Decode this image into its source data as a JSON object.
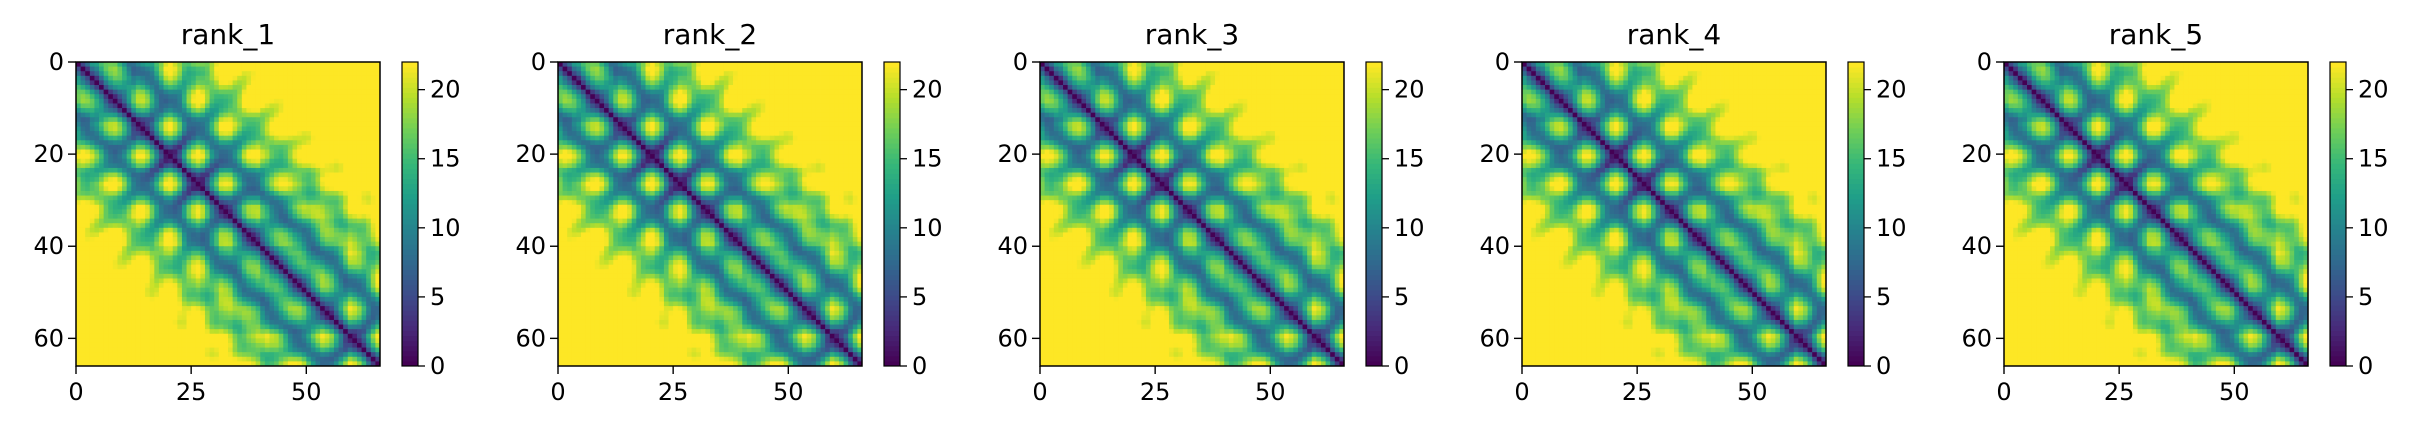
{
  "chart_data": [
    {
      "type": "heatmap",
      "title": "rank_1",
      "xlabel": "",
      "ylabel": "",
      "matrix_size": 66,
      "x_ticks": [
        "0",
        "25",
        "50"
      ],
      "y_ticks": [
        "0",
        "20",
        "40",
        "60"
      ],
      "colorbar": {
        "ticks": [
          "0",
          "5",
          "10",
          "15",
          "20"
        ],
        "range": [
          0,
          22
        ],
        "colormap": "viridis"
      }
    },
    {
      "type": "heatmap",
      "title": "rank_2",
      "xlabel": "",
      "ylabel": "",
      "matrix_size": 66,
      "x_ticks": [
        "0",
        "25",
        "50"
      ],
      "y_ticks": [
        "0",
        "20",
        "40",
        "60"
      ],
      "colorbar": {
        "ticks": [
          "0",
          "5",
          "10",
          "15",
          "20"
        ],
        "range": [
          0,
          22
        ],
        "colormap": "viridis"
      }
    },
    {
      "type": "heatmap",
      "title": "rank_3",
      "xlabel": "",
      "ylabel": "",
      "matrix_size": 66,
      "x_ticks": [
        "0",
        "25",
        "50"
      ],
      "y_ticks": [
        "0",
        "20",
        "40",
        "60"
      ],
      "colorbar": {
        "ticks": [
          "0",
          "5",
          "10",
          "15",
          "20"
        ],
        "range": [
          0,
          22
        ],
        "colormap": "viridis"
      }
    },
    {
      "type": "heatmap",
      "title": "rank_4",
      "xlabel": "",
      "ylabel": "",
      "matrix_size": 66,
      "x_ticks": [
        "0",
        "25",
        "50"
      ],
      "y_ticks": [
        "0",
        "20",
        "40",
        "60"
      ],
      "colorbar": {
        "ticks": [
          "0",
          "5",
          "10",
          "15",
          "20"
        ],
        "range": [
          0,
          22
        ],
        "colormap": "viridis"
      }
    },
    {
      "type": "heatmap",
      "title": "rank_5",
      "xlabel": "",
      "ylabel": "",
      "matrix_size": 66,
      "x_ticks": [
        "0",
        "25",
        "50"
      ],
      "y_ticks": [
        "0",
        "20",
        "40",
        "60"
      ],
      "colorbar": {
        "ticks": [
          "0",
          "5",
          "10",
          "15",
          "20"
        ],
        "range": [
          0,
          22
        ],
        "colormap": "viridis"
      }
    }
  ]
}
